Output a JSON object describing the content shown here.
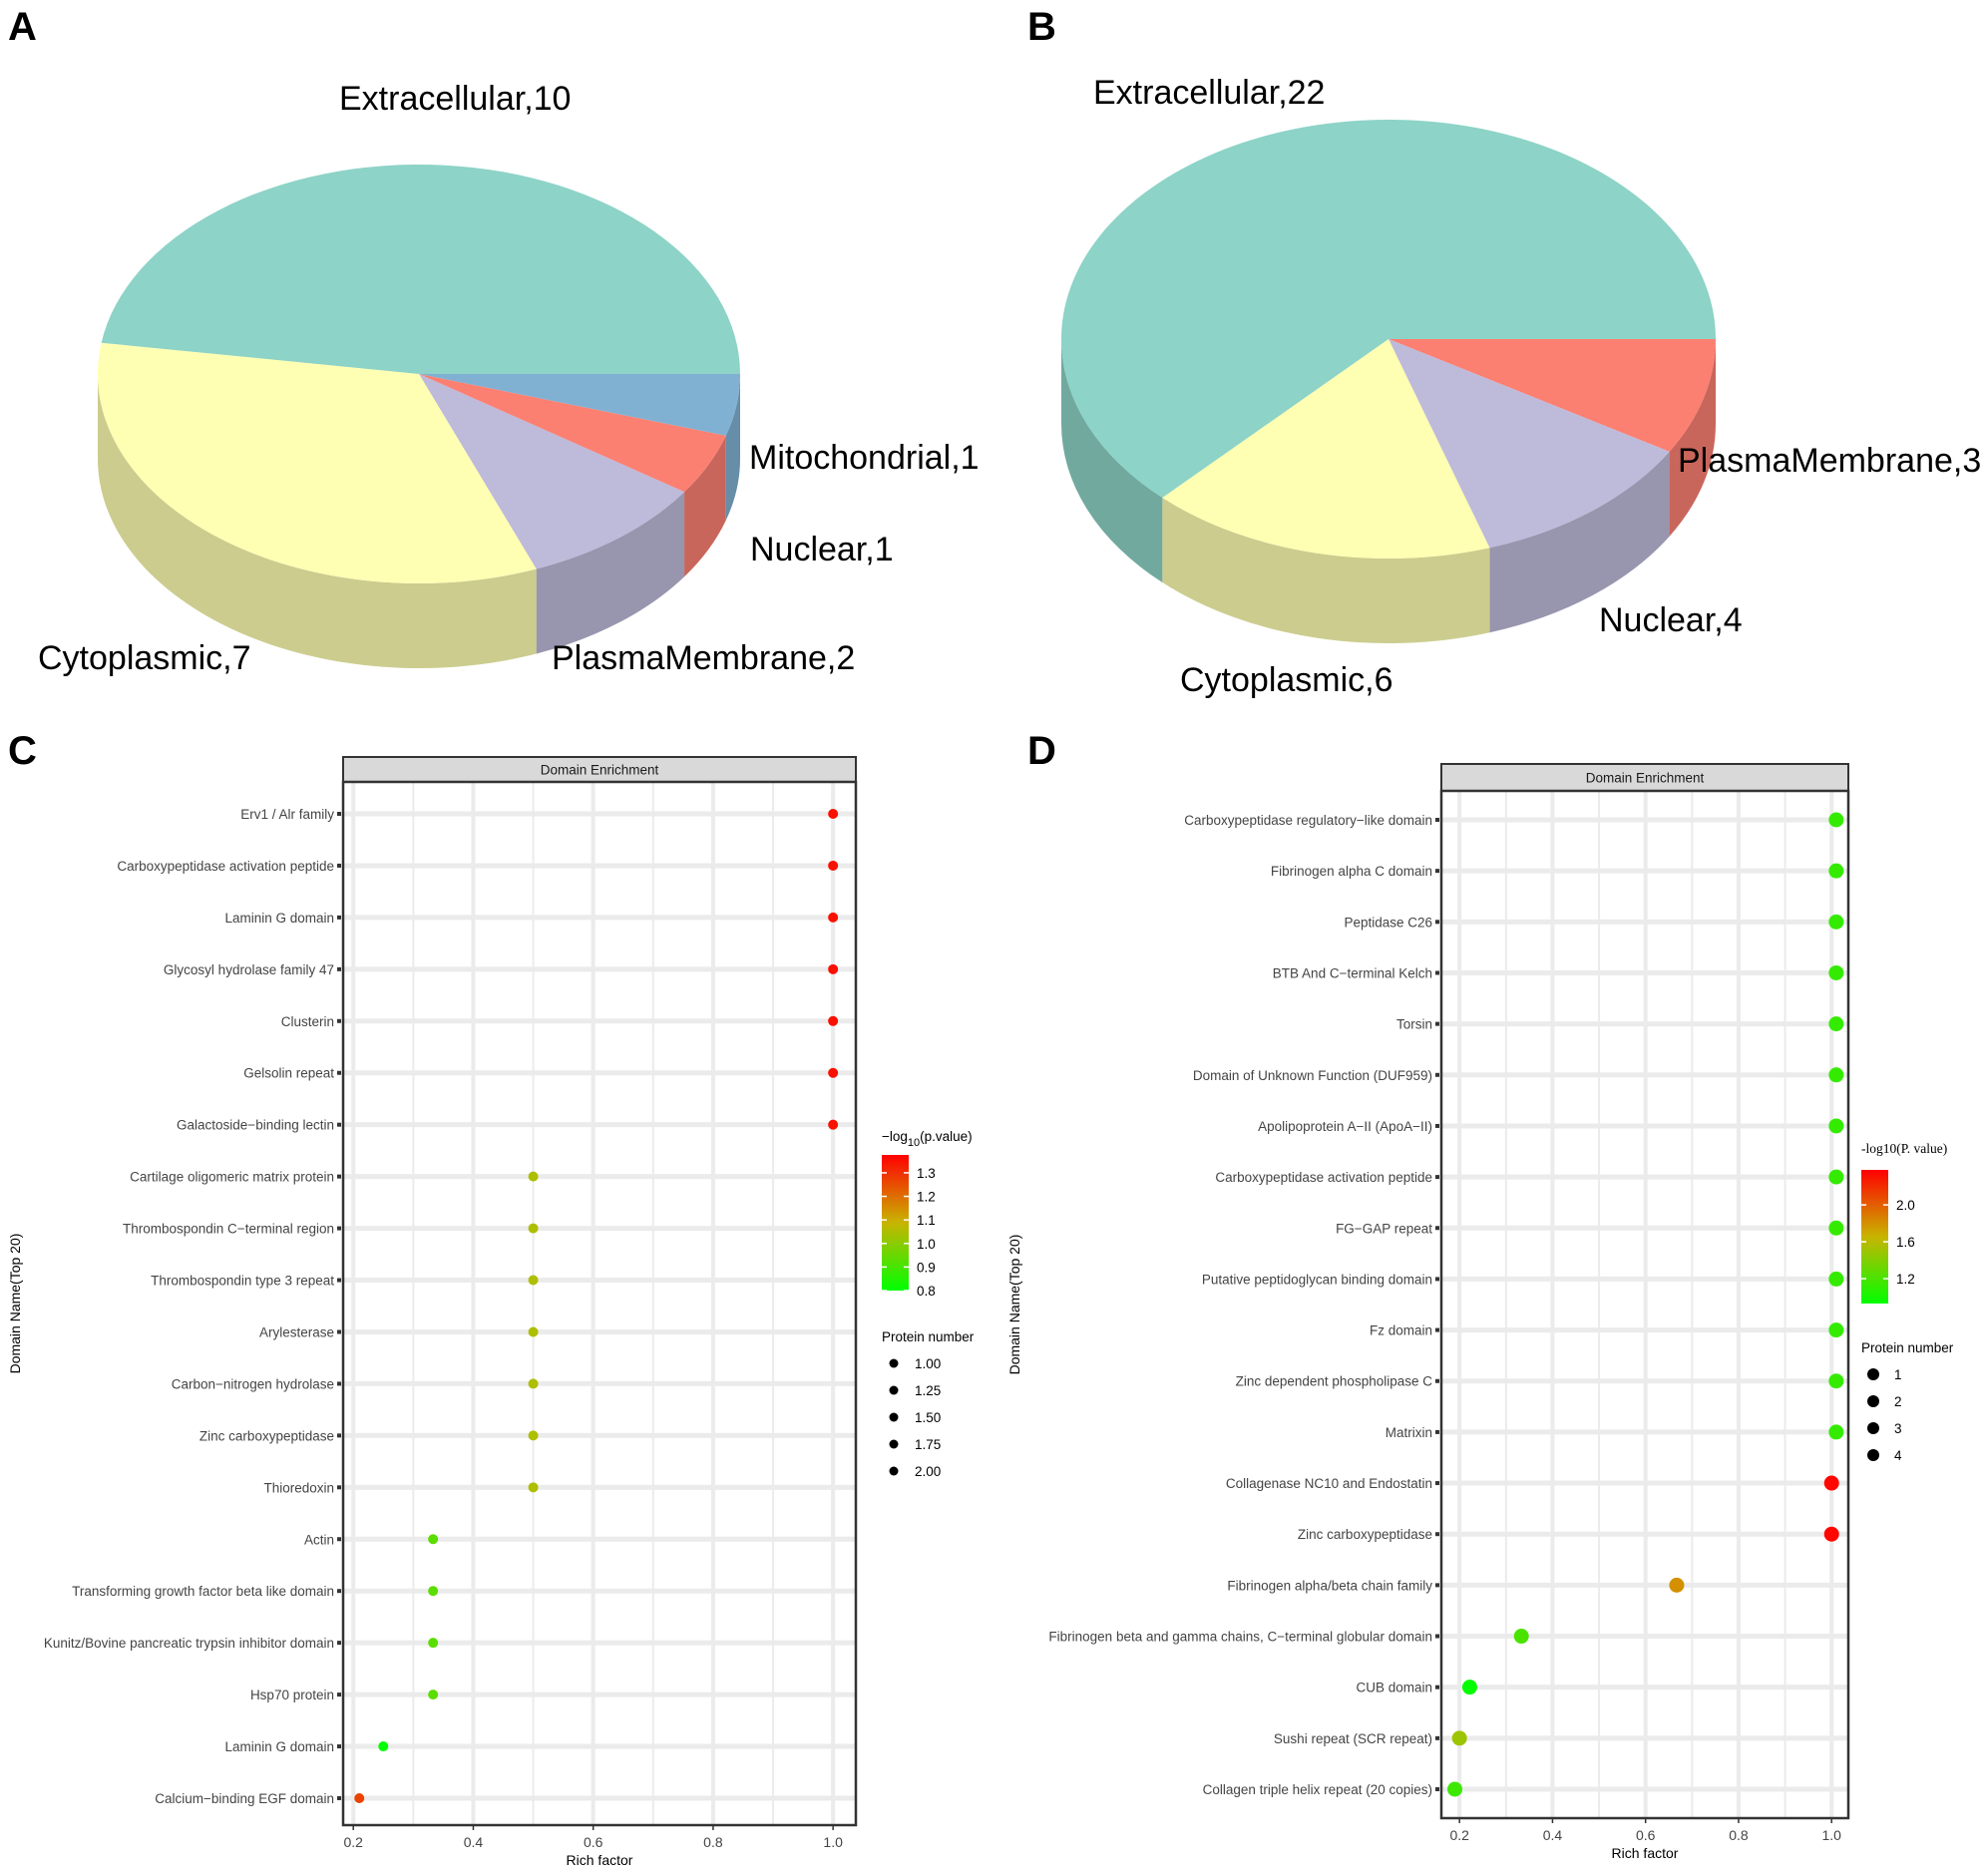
{
  "panel_letters": [
    "A",
    "B",
    "C",
    "D"
  ],
  "chart_data": [
    {
      "type": "pie",
      "panel": "A",
      "slices": [
        {
          "label": "Mitochondrial",
          "value": 1,
          "color": "#80B1D3"
        },
        {
          "label": "Nuclear",
          "value": 1,
          "color": "#FB8072"
        },
        {
          "label": "PlasmaMembrane",
          "value": 2,
          "color": "#BEBADA"
        },
        {
          "label": "Cytoplasmic",
          "value": 7,
          "color": "#FFFFB3"
        },
        {
          "label": "Extracellular",
          "value": 10,
          "color": "#8DD3C7"
        }
      ]
    },
    {
      "type": "pie",
      "panel": "B",
      "slices": [
        {
          "label": "PlasmaMembrane",
          "value": 3,
          "color": "#FB8072"
        },
        {
          "label": "Nuclear",
          "value": 4,
          "color": "#BEBADA"
        },
        {
          "label": "Cytoplasmic",
          "value": 6,
          "color": "#FFFFB3"
        },
        {
          "label": "Extracellular",
          "value": 22,
          "color": "#8DD3C7"
        }
      ]
    },
    {
      "type": "scatter",
      "panel": "C",
      "strip_title": "Domain Enrichment",
      "xlabel": "Rich factor",
      "ylabel": "Domain Name(Top 20)",
      "xlim": [
        0.183,
        1.038
      ],
      "xticks": [
        "0.2",
        "0.4",
        "0.6",
        "0.8",
        "1.0"
      ],
      "grid": true,
      "color_legend": {
        "title_prefix": "−log",
        "title_sub": "10",
        "title_suffix": "(p.value)",
        "range": [
          0.8,
          1.376
        ],
        "ticks": [
          "1.3",
          "1.2",
          "1.1",
          "1.0",
          "0.9",
          "0.8"
        ]
      },
      "size_legend": {
        "title": "Protein number",
        "items": [
          "1.00",
          "1.25",
          "1.50",
          "1.75",
          "2.00"
        ]
      },
      "points": [
        {
          "name": "Erv1 / Alr family",
          "x": 1.0,
          "logp": 1.35
        },
        {
          "name": "Carboxypeptidase activation peptide",
          "x": 1.0,
          "logp": 1.35
        },
        {
          "name": "Laminin G domain",
          "x": 1.0,
          "logp": 1.35
        },
        {
          "name": "Glycosyl hydrolase family 47",
          "x": 1.0,
          "logp": 1.35
        },
        {
          "name": "Clusterin",
          "x": 1.0,
          "logp": 1.35
        },
        {
          "name": "Gelsolin repeat",
          "x": 1.0,
          "logp": 1.35
        },
        {
          "name": "Galactoside−binding lectin",
          "x": 1.0,
          "logp": 1.35
        },
        {
          "name": "Cartilage oligomeric matrix protein",
          "x": 0.5,
          "logp": 1.05
        },
        {
          "name": "Thrombospondin C−terminal region",
          "x": 0.5,
          "logp": 1.05
        },
        {
          "name": "Thrombospondin type 3 repeat",
          "x": 0.5,
          "logp": 1.05
        },
        {
          "name": "Arylesterase",
          "x": 0.5,
          "logp": 1.05
        },
        {
          "name": "Carbon−nitrogen hydrolase",
          "x": 0.5,
          "logp": 1.05
        },
        {
          "name": "Zinc carboxypeptidase",
          "x": 0.5,
          "logp": 1.05
        },
        {
          "name": "Thioredoxin",
          "x": 0.5,
          "logp": 1.05
        },
        {
          "name": "Actin",
          "x": 0.333,
          "logp": 0.93
        },
        {
          "name": "Transforming growth factor beta like domain",
          "x": 0.333,
          "logp": 0.93
        },
        {
          "name": "Kunitz/Bovine pancreatic trypsin inhibitor domain",
          "x": 0.333,
          "logp": 0.93
        },
        {
          "name": "Hsp70 protein",
          "x": 0.333,
          "logp": 0.93
        },
        {
          "name": "Laminin G domain",
          "x": 0.25,
          "logp": 0.8
        },
        {
          "name": "Calcium−binding EGF domain",
          "x": 0.21,
          "logp": 1.27
        }
      ]
    },
    {
      "type": "scatter",
      "panel": "D",
      "strip_title": "Domain Enrichment",
      "xlabel": "Rich factor",
      "ylabel": "Domain Name(Top 20)",
      "xlim": [
        0.161,
        1.036
      ],
      "xticks": [
        "0.2",
        "0.4",
        "0.6",
        "0.8",
        "1.0"
      ],
      "grid": true,
      "color_legend": {
        "title": "-log10(P. value)",
        "range": [
          0.93,
          2.38
        ],
        "ticks": [
          "2.0",
          "1.6",
          "1.2"
        ]
      },
      "size_legend": {
        "title": "Protein number",
        "items": [
          "1",
          "2",
          "3",
          "4"
        ]
      },
      "points": [
        {
          "name": "Carboxypeptidase regulatory−like domain",
          "x": 1.01,
          "logp": 1.12
        },
        {
          "name": "Fibrinogen alpha C domain",
          "x": 1.01,
          "logp": 1.12
        },
        {
          "name": "Peptidase C26",
          "x": 1.01,
          "logp": 1.12
        },
        {
          "name": "BTB And C−terminal Kelch",
          "x": 1.01,
          "logp": 1.12
        },
        {
          "name": "Torsin",
          "x": 1.01,
          "logp": 1.12
        },
        {
          "name": "Domain of Unknown Function (DUF959)",
          "x": 1.01,
          "logp": 1.12
        },
        {
          "name": "Apolipoprotein A−II (ApoA−II)",
          "x": 1.01,
          "logp": 1.12
        },
        {
          "name": "Carboxypeptidase activation peptide",
          "x": 1.01,
          "logp": 1.12
        },
        {
          "name": "FG−GAP repeat",
          "x": 1.01,
          "logp": 1.12
        },
        {
          "name": "Putative peptidoglycan binding domain",
          "x": 1.01,
          "logp": 1.12
        },
        {
          "name": "Fz domain",
          "x": 1.01,
          "logp": 1.12
        },
        {
          "name": "Zinc dependent phospholipase C",
          "x": 1.01,
          "logp": 1.12
        },
        {
          "name": "Matrixin",
          "x": 1.01,
          "logp": 1.12
        },
        {
          "name": "Collagenase NC10 and Endostatin",
          "x": 1.0,
          "logp": 2.35
        },
        {
          "name": "Zinc carboxypeptidase",
          "x": 1.0,
          "logp": 2.35
        },
        {
          "name": "Fibrinogen alpha/beta chain family",
          "x": 0.667,
          "logp": 1.8
        },
        {
          "name": "Fibrinogen beta and gamma chains, C−terminal globular domain",
          "x": 0.333,
          "logp": 1.2
        },
        {
          "name": "CUB domain",
          "x": 0.222,
          "logp": 0.95
        },
        {
          "name": "Sushi repeat (SCR repeat)",
          "x": 0.2,
          "logp": 1.5
        },
        {
          "name": "Collagen triple helix repeat (20 copies)",
          "x": 0.19,
          "logp": 1.15
        }
      ]
    }
  ]
}
